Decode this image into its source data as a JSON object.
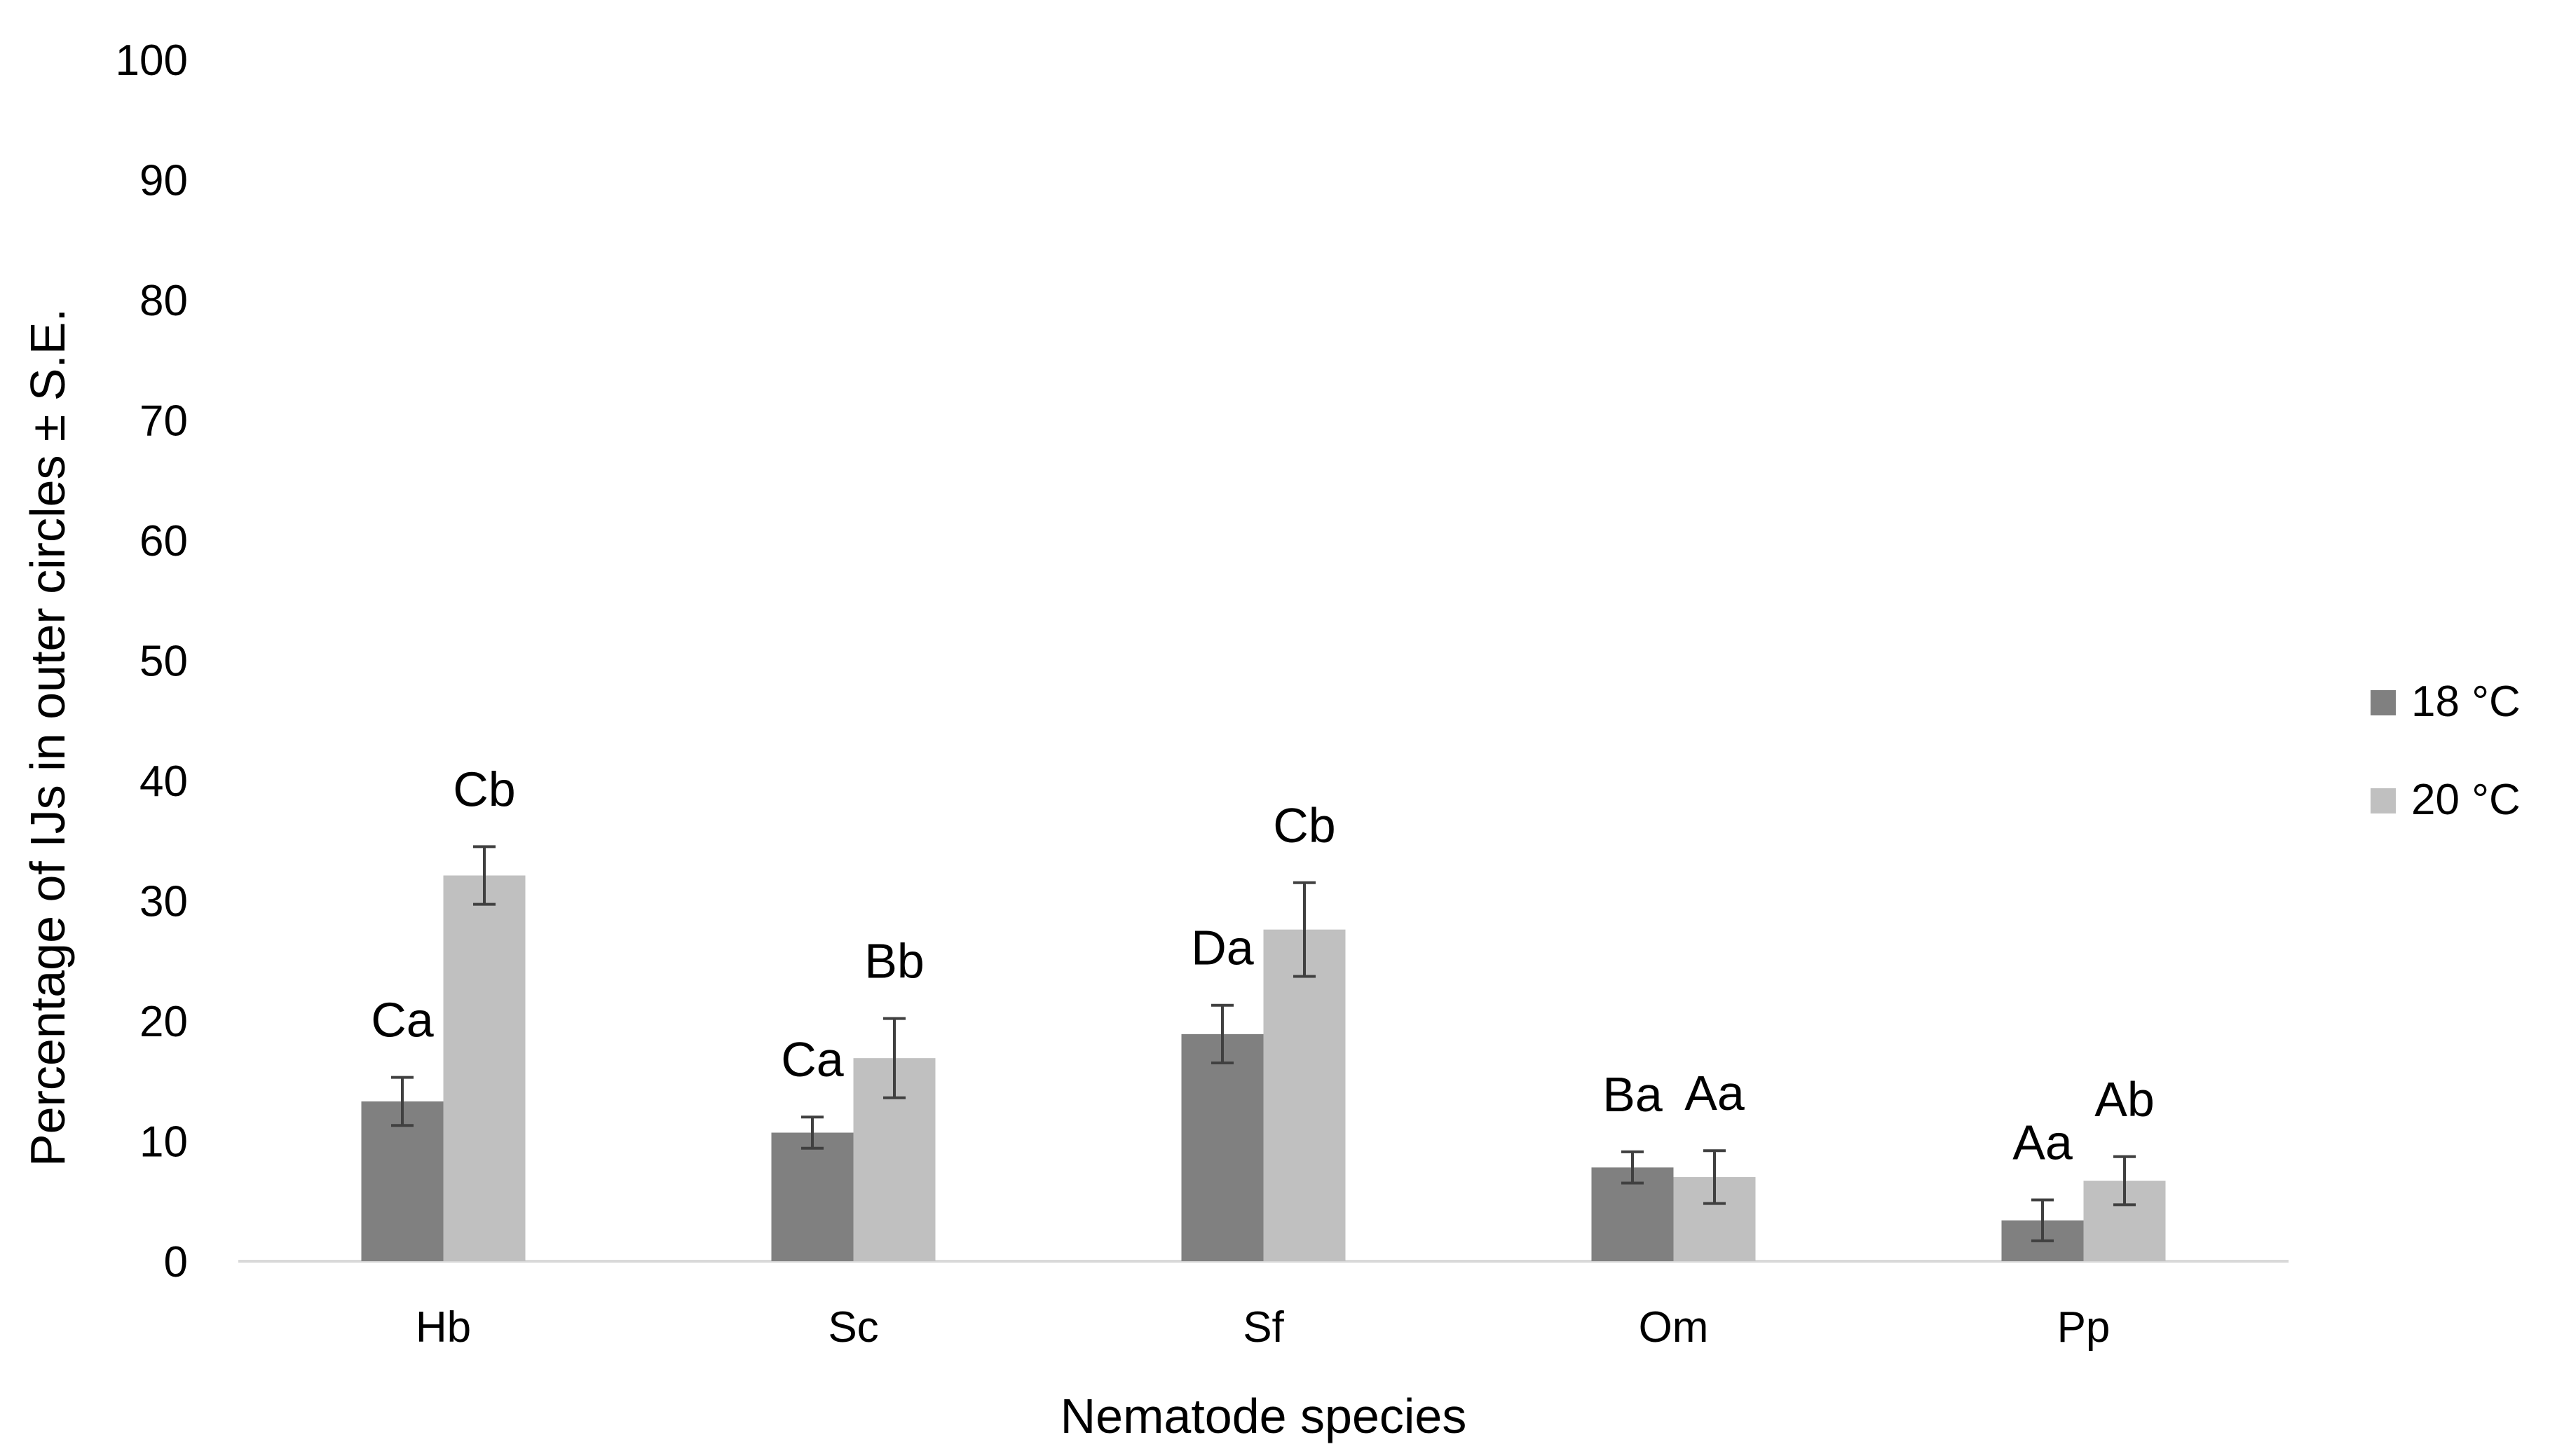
{
  "chart_data": {
    "type": "bar",
    "title": "",
    "xlabel": "Nematode species",
    "ylabel": "Percentage of IJs in outer circles ± S.E.",
    "ylim": [
      0,
      100
    ],
    "yticks": [
      "0",
      "10",
      "20",
      "30",
      "40",
      "50",
      "60",
      "70",
      "80",
      "90",
      "100"
    ],
    "categories": [
      "Hb",
      "Sc",
      "Sf",
      "Om",
      "Pp"
    ],
    "grid": false,
    "legend_position": "right",
    "series": [
      {
        "name": "18 °C",
        "color": "#808080",
        "values": [
          13.3,
          10.7,
          18.9,
          7.8,
          3.4
        ],
        "errors": [
          2.0,
          1.3,
          2.4,
          1.3,
          1.7
        ],
        "labels": [
          "Ca",
          "Ca",
          "Da",
          "Ba",
          "Aa"
        ]
      },
      {
        "name": "20 °C",
        "color": "#c0c0c0",
        "values": [
          32.1,
          16.9,
          27.6,
          7.0,
          6.7
        ],
        "errors": [
          2.4,
          3.3,
          3.9,
          2.2,
          2.0
        ],
        "labels": [
          "Cb",
          "Bb",
          "Cb",
          "Aa",
          "Ab"
        ]
      }
    ]
  }
}
